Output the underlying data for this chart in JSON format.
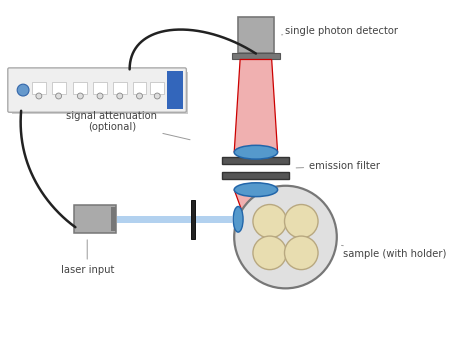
{
  "bg_color": "#ffffff",
  "label_color": "#444444",
  "red_beam_fill": "#f0b0b0",
  "red_beam_edge": "#cc0000",
  "blue_beam_fill": "#aaccee",
  "blue_lens_fill": "#5599cc",
  "blue_lens_edge": "#2266aa",
  "gray_light": "#d8d8d8",
  "gray_mid": "#aaaaaa",
  "gray_dark": "#777777",
  "filter_color": "#555555",
  "filter_edge": "#333333",
  "well_color": "#e8ddb0",
  "well_edge": "#b8a880",
  "cable_color": "#222222",
  "instr_body": "#efefef",
  "instr_edge": "#aaaaaa",
  "instr_blue": "#3366bb",
  "instr_port_fill": "#dddddd",
  "instr_port_edge": "#888888",
  "labels": {
    "detector": "single photon detector",
    "emission": "emission filter",
    "sample": "sample (with holder)",
    "signal": "signal attenuation\n(optional)",
    "laser": "laser input"
  },
  "figsize": [
    4.74,
    3.37
  ],
  "dpi": 100
}
